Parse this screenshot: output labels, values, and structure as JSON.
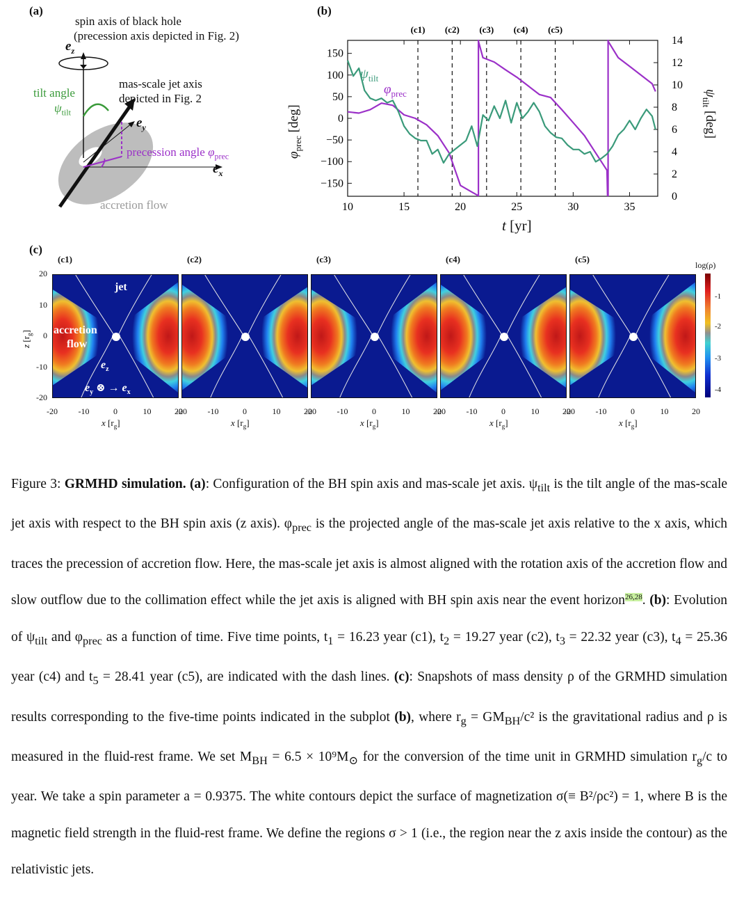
{
  "panel_a": {
    "label": "(a)",
    "spin_axis_text_1": "spin axis of  black hole",
    "spin_axis_text_2": "(precession axis depicted in Fig. 2)",
    "ez_label": "e",
    "ez_sub": "z",
    "tilt_angle_label": "tilt angle",
    "tilt_symbol": "ψ",
    "tilt_sub": "tilt",
    "jet_axis_text_1": "mas-scale jet axis",
    "jet_axis_text_2": "depicted in Fig. 2",
    "ey_label": "e",
    "ey_sub": "y",
    "precession_label": "precession angle ",
    "prec_symbol": "φ",
    "prec_sub": "prec",
    "ex_label": "e",
    "ex_sub": "x",
    "accretion_label": "accretion flow"
  },
  "panel_b": {
    "label": "(b)",
    "markers": [
      "(c1)",
      "(c2)",
      "(c3)",
      "(c4)",
      "(c5)"
    ],
    "xlabel_t": "t",
    "xlabel_unit": "[yr]",
    "ylabel_left_sym": "φ",
    "ylabel_left_sub": "prec",
    "ylabel_left_unit": "[deg]",
    "ylabel_right_sym": "ψ",
    "ylabel_right_sub": "tilt",
    "ylabel_right_unit": "[deg]",
    "legend_tilt_sym": "ψ",
    "legend_tilt_sub": "tilt",
    "legend_prec_sym": "φ",
    "legend_prec_sub": "prec",
    "colors": {
      "tilt": "#3a9a7a",
      "prec": "#9b30c8"
    }
  },
  "chart_data": {
    "type": "line",
    "x_range": [
      10,
      37.5
    ],
    "ylim_left": [
      -180,
      180
    ],
    "ylim_right": [
      0,
      14
    ],
    "xticks": [
      10,
      15,
      20,
      25,
      30,
      35
    ],
    "yticks_left": [
      150,
      100,
      50,
      0,
      -50,
      -100,
      -150
    ],
    "yticks_right": [
      14,
      12,
      10,
      8,
      6,
      4,
      2,
      0
    ],
    "markers_t": [
      16.23,
      19.27,
      22.32,
      25.36,
      28.41
    ],
    "series": [
      {
        "name": "φprec",
        "axis": "left",
        "x": [
          10,
          11,
          12,
          13,
          14,
          15,
          16,
          17,
          18,
          19,
          20,
          21,
          21.55,
          21.6,
          22,
          23,
          24,
          25,
          26,
          27,
          28,
          29,
          30,
          31,
          32,
          33,
          33.05,
          33.1,
          34,
          35,
          36,
          37,
          37.3
        ],
        "y": [
          15,
          12,
          20,
          35,
          30,
          8,
          0,
          -15,
          -40,
          -80,
          -155,
          -170,
          -178,
          178,
          140,
          130,
          112,
          95,
          75,
          55,
          48,
          20,
          -10,
          -40,
          -80,
          -120,
          -178,
          178,
          140,
          120,
          100,
          80,
          62
        ]
      },
      {
        "name": "ψtilt",
        "axis": "right",
        "x": [
          10,
          10.5,
          11,
          11.5,
          12,
          12.5,
          13,
          13.5,
          14,
          14.5,
          15,
          15.5,
          16,
          16.5,
          17,
          17.5,
          18,
          18.5,
          19,
          19.5,
          20,
          20.5,
          21,
          21.5,
          22,
          22.5,
          23,
          23.5,
          24,
          24.5,
          25,
          25.5,
          26,
          26.5,
          27,
          27.5,
          28,
          28.5,
          29,
          29.5,
          30,
          30.5,
          31,
          31.5,
          32,
          32.5,
          33,
          33.5,
          34,
          34.5,
          35,
          35.5,
          36,
          36.5,
          37,
          37.3
        ],
        "y": [
          12.2,
          10.8,
          11.5,
          9.5,
          8.8,
          8.6,
          8.8,
          8.4,
          8.6,
          7.6,
          6.3,
          5.6,
          5.2,
          5.0,
          5.0,
          3.8,
          4.2,
          3.0,
          3.8,
          4.2,
          4.6,
          5.0,
          6.3,
          4.5,
          7.3,
          6.8,
          8.1,
          7.0,
          8.6,
          6.6,
          8.4,
          7.0,
          7.6,
          8.4,
          7.6,
          6.3,
          5.7,
          5.3,
          5.2,
          4.6,
          4.2,
          4.2,
          3.8,
          4.0,
          3.1,
          3.4,
          3.8,
          4.5,
          5.5,
          6.0,
          6.8,
          6.0,
          7.0,
          7.8,
          7.2,
          6.0
        ]
      }
    ]
  },
  "panel_c": {
    "label": "(c)",
    "snapshots": [
      "(c1)",
      "(c2)",
      "(c3)",
      "(c4)",
      "(c5)"
    ],
    "yticks": [
      "20",
      "10",
      "0",
      "-10",
      "-20"
    ],
    "xticks": [
      "-20",
      "-10",
      "0",
      "10",
      "20"
    ],
    "ylabel_z": "z",
    "ylabel_unit": "[r",
    "ylabel_sub": "g",
    "xlabel_x": "x",
    "xlabel_unit": "[r",
    "xlabel_sub": "g",
    "colorbar_title": "log(ρ)",
    "colorbar_ticks": [
      "-1",
      "-2",
      "-3",
      "-4"
    ],
    "jet_label": "jet",
    "accretion_label_1": "accretion",
    "accretion_label_2": "flow",
    "ez_label": "e",
    "ez_sub": "z",
    "ey_label": "e",
    "ey_sub": "y",
    "ex_label": "e",
    "ex_sub": "x"
  },
  "caption": {
    "fig": "Figure 3:",
    "title": "GRMHD simulation.",
    "a_label": "(a)",
    "t1": ": Configuration of the BH spin axis and mas-scale jet axis. ψ",
    "t1_sub": "tilt",
    "t2": " is the tilt angle of the mas-scale jet axis with respect to the BH spin axis (z axis). φ",
    "t2_sub": "prec",
    "t3": " is the projected angle of the mas-scale jet axis relative to the x axis, which traces the precession of accretion flow. Here, the mas-scale jet axis is almost aligned with the rotation axis of the accretion flow and slow outflow due to the collimation effect while the jet axis is aligned with BH spin axis near the event horizon",
    "ref1": "26",
    "ref2": "28",
    "t4": ". ",
    "b_label": "(b)",
    "t5": ": Evolution of ψ",
    "t5_sub": "tilt",
    "t6": " and φ",
    "t6_sub": "prec",
    "t7": " as a function of time. Five time points, t",
    "t7_sub": "1",
    "t8": " = 16.23 year (c1), t",
    "t8_sub": "2",
    "t9": " = 19.27 year (c2), t",
    "t9_sub": "3",
    "t10": " = 22.32 year (c3), t",
    "t10_sub": "4",
    "t11": " = 25.36 year (c4) and t",
    "t11_sub": "5",
    "t12": " = 28.41 year (c5), are indicated with the dash lines. ",
    "c_label": "(c)",
    "t13": ": Snapshots of mass density ρ of the GRMHD simulation results corresponding to the five-time points indicated in the subplot ",
    "b_label2": "(b)",
    "t14": ", where r",
    "t14_sub": "g",
    "t15": " = GM",
    "t15_sub": "BH",
    "t16": "/c² is the gravitational radius and ρ is measured in the fluid-rest frame. We set M",
    "t16_sub": "BH",
    "t17": " = 6.5 × 10⁹M",
    "t17_sub": "⊙",
    "t18": " for the conversion of the time unit in GRMHD simulation r",
    "t18_sub": "g",
    "t19": "/c to year. We take a spin parameter a = 0.9375. The white contours depict the surface of magnetization σ(≡ B²/ρc²) = 1, where B is the magnetic field strength in the fluid-rest frame. We define the regions σ > 1 (i.e., the region near the z axis inside the contour) as the relativistic jets."
  }
}
